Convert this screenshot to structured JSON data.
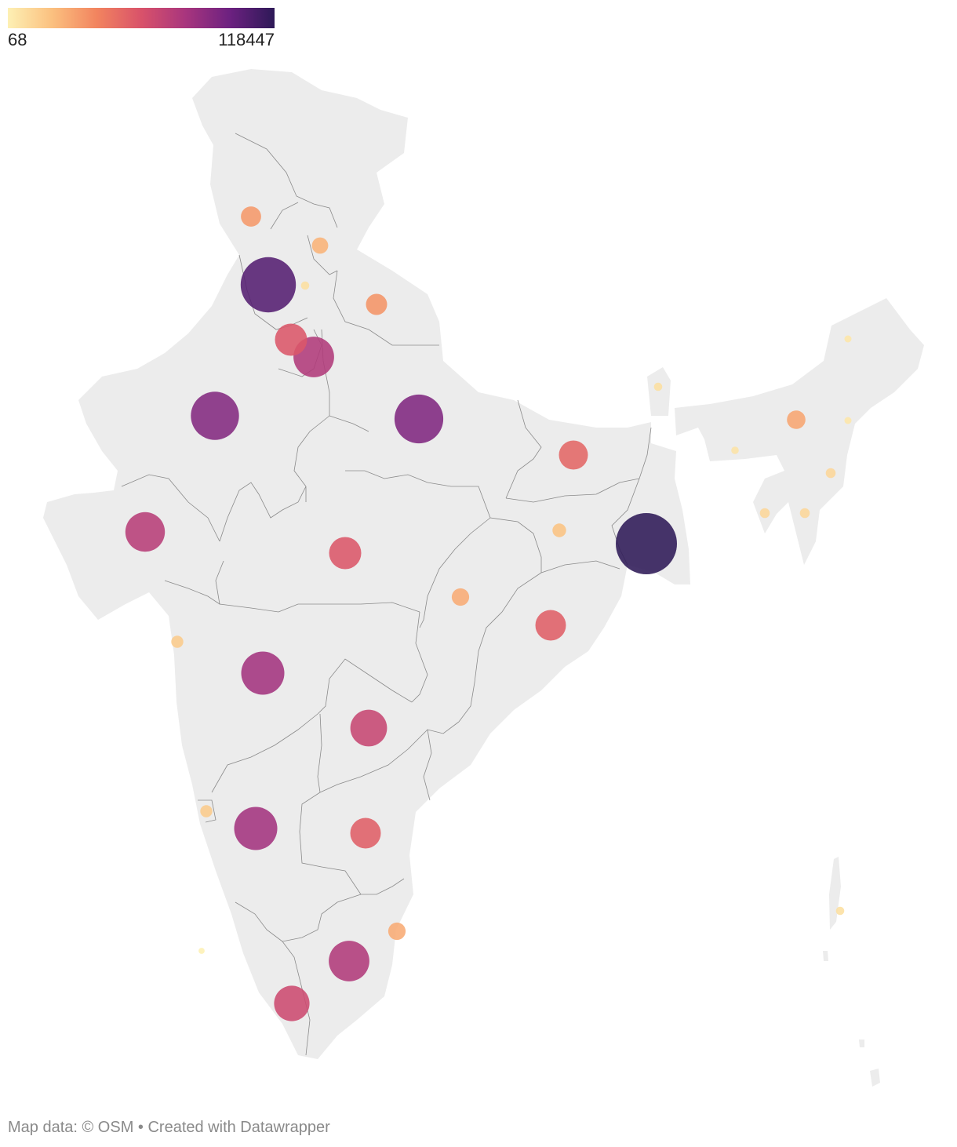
{
  "legend": {
    "min_label": "68",
    "max_label": "118447",
    "min_value": 68,
    "max_value": 118447,
    "gradient": [
      "#fdf0b4",
      "#fbc07f",
      "#f2845f",
      "#d9526a",
      "#a8357e",
      "#6c2180",
      "#2d1957"
    ]
  },
  "map": {
    "land_color": "#ececec",
    "border_color": "#8a8a8a",
    "bubble_opacity": 0.88
  },
  "markers": [
    {
      "region": "jammu-kashmir",
      "value": 9000
    },
    {
      "region": "himachal-pradesh",
      "value": 5000
    },
    {
      "region": "punjab",
      "value": 95000
    },
    {
      "region": "chandigarh",
      "value": 500
    },
    {
      "region": "uttarakhand",
      "value": 10000
    },
    {
      "region": "haryana",
      "value": 28000
    },
    {
      "region": "delhi",
      "value": 48000
    },
    {
      "region": "rajasthan",
      "value": 70000
    },
    {
      "region": "uttar-pradesh",
      "value": 72000
    },
    {
      "region": "bihar",
      "value": 22000
    },
    {
      "region": "sikkim",
      "value": 500
    },
    {
      "region": "arunachal-pradesh",
      "value": 200
    },
    {
      "region": "assam",
      "value": 7000
    },
    {
      "region": "nagaland",
      "value": 200
    },
    {
      "region": "meghalaya",
      "value": 300
    },
    {
      "region": "manipur",
      "value": 1000
    },
    {
      "region": "tripura",
      "value": 1000
    },
    {
      "region": "mizoram",
      "value": 1000
    },
    {
      "region": "jharkhand",
      "value": 3000
    },
    {
      "region": "west-bengal",
      "value": 118447
    },
    {
      "region": "gujarat",
      "value": 45000
    },
    {
      "region": "madhya-pradesh",
      "value": 28000
    },
    {
      "region": "chhattisgarh",
      "value": 6000
    },
    {
      "region": "odisha",
      "value": 25000
    },
    {
      "region": "dadra-nagar-haveli-daman-diu",
      "value": 2000
    },
    {
      "region": "maharashtra",
      "value": 55000
    },
    {
      "region": "telangana",
      "value": 38000
    },
    {
      "region": "goa",
      "value": 2000
    },
    {
      "region": "karnataka",
      "value": 55000
    },
    {
      "region": "andhra-pradesh",
      "value": 25000
    },
    {
      "region": "puducherry",
      "value": 6000
    },
    {
      "region": "tamil-nadu",
      "value": 48000
    },
    {
      "region": "kerala",
      "value": 35000
    },
    {
      "region": "lakshadweep",
      "value": 68
    },
    {
      "region": "andaman-nicobar",
      "value": 500
    }
  ],
  "footer": {
    "map_data": "Map data: © OSM",
    "created_with": " • Created with Datawrapper"
  }
}
